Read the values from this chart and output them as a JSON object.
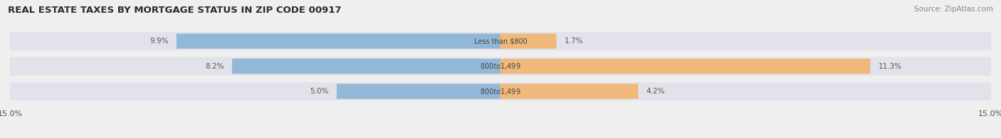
{
  "title": "REAL ESTATE TAXES BY MORTGAGE STATUS IN ZIP CODE 00917",
  "source": "Source: ZipAtlas.com",
  "rows": [
    {
      "label": "Less than $800",
      "without_mortgage": 9.9,
      "with_mortgage": 1.7
    },
    {
      "label": "$800 to $1,499",
      "without_mortgage": 8.2,
      "with_mortgage": 11.3
    },
    {
      "label": "$800 to $1,499",
      "without_mortgage": 5.0,
      "with_mortgage": 4.2
    }
  ],
  "max_val": 15.0,
  "color_without": "#92b8d8",
  "color_with": "#f0b87a",
  "bg_color": "#efefef",
  "bar_bg": "#e2e2ea",
  "title_fontsize": 9.5,
  "source_fontsize": 7.5,
  "label_fontsize": 7.0,
  "value_fontsize": 7.5,
  "tick_fontsize": 8,
  "legend_fontsize": 8
}
